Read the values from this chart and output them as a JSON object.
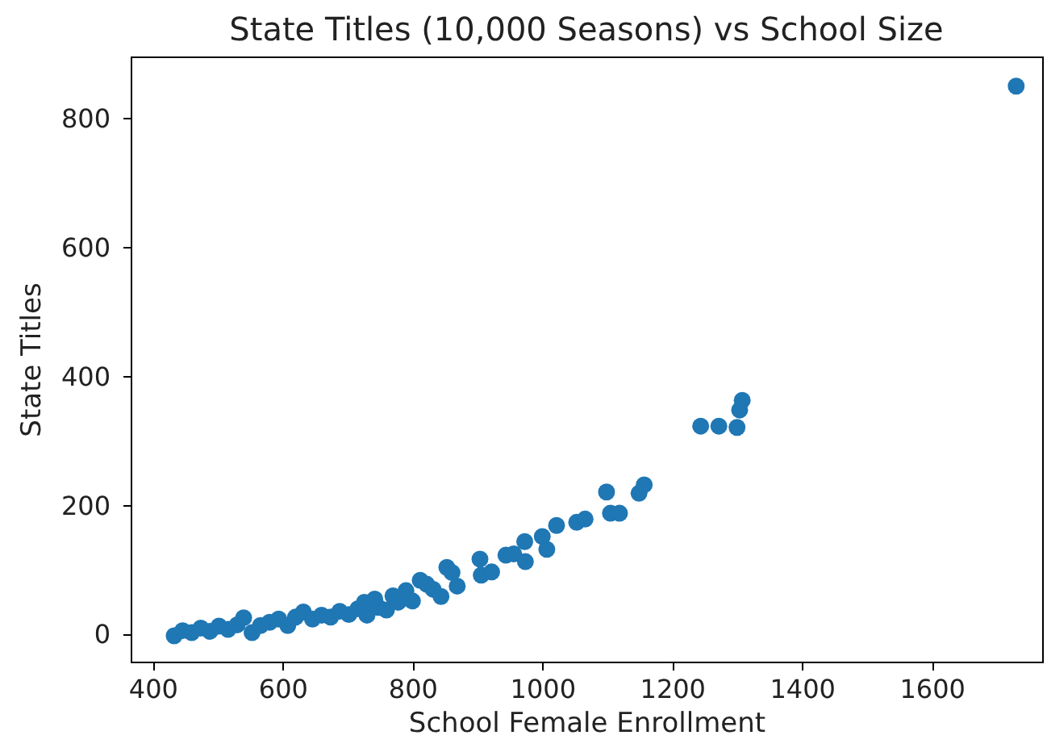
{
  "chart_data": {
    "type": "scatter",
    "title": "State Titles (10,000 Seasons) vs School Size",
    "xlabel": "School Female Enrollment",
    "ylabel": "State Titles",
    "x": [
      433,
      446,
      460,
      474,
      488,
      502,
      516,
      530,
      540,
      553,
      566,
      580,
      594,
      608,
      620,
      632,
      646,
      660,
      674,
      688,
      702,
      716,
      726,
      730,
      742,
      748,
      760,
      770,
      778,
      790,
      800,
      812,
      822,
      832,
      844,
      853,
      861,
      869,
      904,
      906,
      922,
      944,
      956,
      973,
      974,
      1000,
      1007,
      1022,
      1053,
      1066,
      1099,
      1105,
      1119,
      1149,
      1157,
      1244,
      1272,
      1300,
      1304,
      1308,
      1730
    ],
    "series": [
      {
        "color": "#1f77b4",
        "values": [
          -2,
          6,
          3,
          10,
          5,
          13,
          8,
          15,
          26,
          3,
          14,
          19,
          24,
          14,
          27,
          35,
          24,
          30,
          27,
          36,
          31,
          40,
          50,
          30,
          55,
          42,
          38,
          60,
          50,
          68,
          52,
          84,
          78,
          70,
          59,
          104,
          96,
          75,
          117,
          92,
          97,
          123,
          125,
          144,
          113,
          152,
          132,
          169,
          174,
          179,
          221,
          188,
          188,
          219,
          232,
          323,
          323,
          321,
          348,
          363,
          850
        ]
      }
    ],
    "xlim": [
      366,
      1770
    ],
    "ylim": [
      -42,
      896
    ],
    "xticks": [
      400,
      600,
      800,
      1000,
      1200,
      1400,
      1600
    ],
    "yticks": [
      0,
      200,
      400,
      600,
      800
    ],
    "grid": false,
    "marker": "circle"
  }
}
